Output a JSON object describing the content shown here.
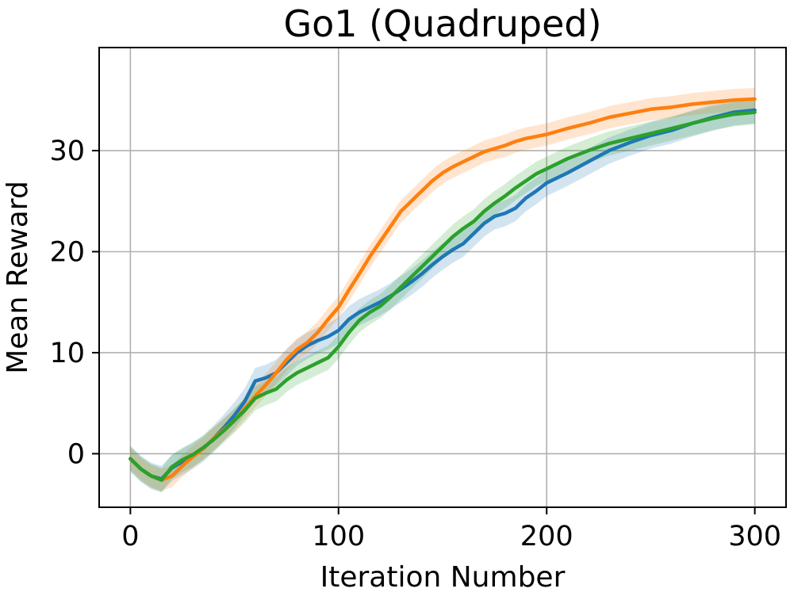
{
  "chart_data": {
    "type": "line",
    "title": "Go1 (Quadruped)",
    "xlabel": "Iteration Number",
    "ylabel": "Mean Reward",
    "xlim": [
      -15,
      315
    ],
    "ylim": [
      -5.3,
      40.2
    ],
    "xticks": [
      0,
      100,
      200,
      300
    ],
    "yticks": [
      0,
      10,
      20,
      30
    ],
    "xtick_labels": [
      "0",
      "100",
      "200",
      "300"
    ],
    "ytick_labels": [
      "0",
      "10",
      "20",
      "30"
    ],
    "grid": true,
    "legend": false,
    "series": [
      {
        "color": "#1f77b4",
        "band_half_width": 1.3,
        "x": [
          0,
          5,
          10,
          15,
          20,
          25,
          30,
          35,
          40,
          45,
          50,
          55,
          60,
          65,
          70,
          75,
          80,
          85,
          90,
          95,
          100,
          105,
          110,
          115,
          120,
          125,
          130,
          135,
          140,
          145,
          150,
          155,
          160,
          165,
          170,
          175,
          180,
          185,
          190,
          195,
          200,
          210,
          220,
          230,
          240,
          250,
          260,
          270,
          280,
          290,
          300
        ],
        "y": [
          -0.5,
          -1.5,
          -2.2,
          -2.5,
          -1.4,
          -0.8,
          -0.2,
          0.5,
          1.5,
          2.6,
          3.8,
          5.2,
          7.2,
          7.5,
          8.0,
          9.0,
          10.0,
          10.7,
          11.2,
          11.6,
          12.2,
          13.3,
          14.0,
          14.5,
          15.0,
          15.6,
          16.3,
          17.0,
          17.8,
          18.7,
          19.5,
          20.2,
          20.8,
          21.8,
          22.8,
          23.5,
          23.8,
          24.3,
          25.3,
          26.0,
          26.8,
          27.8,
          28.9,
          30.0,
          30.8,
          31.5,
          32.0,
          32.7,
          33.3,
          33.8,
          34.0
        ]
      },
      {
        "color": "#ff7f0e",
        "band_half_width": 1.1,
        "x": [
          0,
          5,
          10,
          15,
          20,
          25,
          30,
          35,
          40,
          45,
          50,
          55,
          60,
          65,
          70,
          75,
          80,
          85,
          90,
          95,
          100,
          105,
          110,
          115,
          120,
          125,
          130,
          135,
          140,
          145,
          150,
          155,
          160,
          165,
          170,
          175,
          180,
          185,
          190,
          195,
          200,
          210,
          220,
          230,
          240,
          250,
          260,
          270,
          280,
          290,
          300
        ],
        "y": [
          -0.5,
          -1.5,
          -2.2,
          -2.6,
          -2.2,
          -1.2,
          -0.3,
          0.5,
          1.5,
          2.4,
          3.3,
          4.5,
          5.7,
          6.8,
          8.0,
          9.3,
          10.3,
          11.0,
          12.0,
          13.3,
          14.5,
          16.2,
          17.8,
          19.5,
          21.0,
          22.5,
          24.0,
          25.0,
          26.0,
          27.0,
          27.8,
          28.4,
          28.9,
          29.4,
          29.9,
          30.2,
          30.5,
          30.9,
          31.2,
          31.4,
          31.6,
          32.2,
          32.7,
          33.3,
          33.7,
          34.1,
          34.3,
          34.6,
          34.8,
          35.0,
          35.1
        ]
      },
      {
        "color": "#2ca02c",
        "band_half_width": 1.2,
        "x": [
          0,
          5,
          10,
          15,
          20,
          25,
          30,
          35,
          40,
          45,
          50,
          55,
          60,
          65,
          70,
          75,
          80,
          85,
          90,
          95,
          100,
          105,
          110,
          115,
          120,
          125,
          130,
          135,
          140,
          145,
          150,
          155,
          160,
          165,
          170,
          175,
          180,
          185,
          190,
          195,
          200,
          210,
          220,
          230,
          240,
          250,
          260,
          270,
          280,
          290,
          300
        ],
        "y": [
          -0.5,
          -1.5,
          -2.2,
          -2.6,
          -1.3,
          -0.6,
          -0.1,
          0.6,
          1.4,
          2.3,
          3.3,
          4.3,
          5.5,
          6.0,
          6.4,
          7.3,
          8.0,
          8.5,
          9.0,
          9.5,
          10.6,
          12.0,
          13.2,
          14.0,
          14.6,
          15.5,
          16.5,
          17.5,
          18.5,
          19.5,
          20.5,
          21.5,
          22.3,
          23.0,
          24.0,
          24.8,
          25.5,
          26.3,
          27.0,
          27.7,
          28.2,
          29.2,
          30.0,
          30.7,
          31.2,
          31.7,
          32.2,
          32.7,
          33.2,
          33.6,
          33.8
        ]
      }
    ]
  }
}
